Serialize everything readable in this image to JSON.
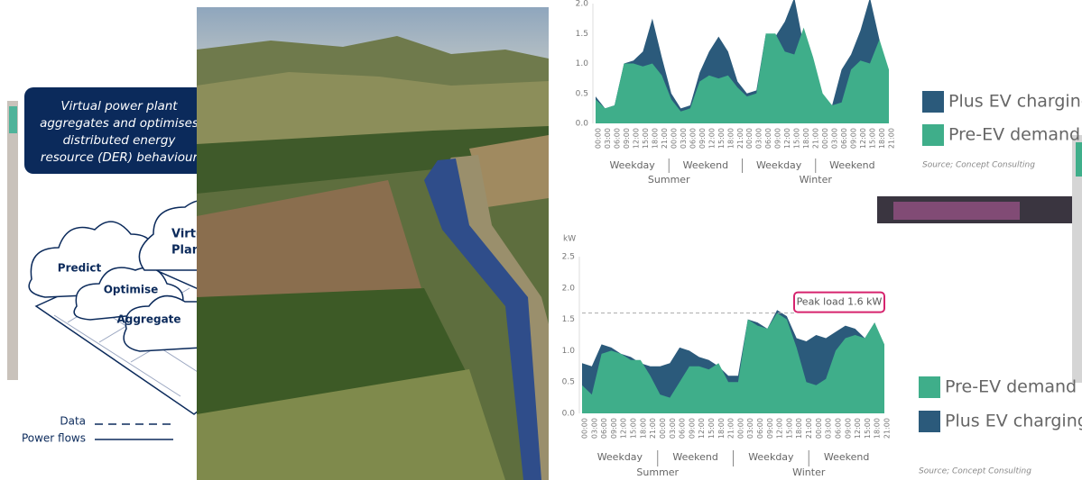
{
  "diagram": {
    "title_lines": [
      "Virtual power plant",
      "aggregates and optimises",
      "distributed energy",
      "resource (DER) behaviour"
    ],
    "hub_lines": [
      "Virtual",
      "Plant"
    ],
    "clouds": [
      "Predict",
      "Optimise",
      "Aggregate"
    ],
    "legend": [
      "Data",
      "Power flows"
    ]
  },
  "chart_data": [
    {
      "type": "area",
      "x": [
        "00:00",
        "03:00",
        "06:00",
        "09:00",
        "12:00",
        "15:00",
        "18:00",
        "21:00",
        "00:00",
        "03:00",
        "06:00",
        "09:00",
        "12:00",
        "15:00",
        "18:00",
        "21:00",
        "00:00",
        "03:00",
        "06:00",
        "09:00",
        "12:00",
        "15:00",
        "18:00",
        "21:00",
        "00:00",
        "03:00",
        "06:00",
        "09:00",
        "12:00",
        "15:00",
        "18:00",
        "21:00"
      ],
      "series": [
        {
          "name": "Plus EV charging",
          "color": "#2b5a7b",
          "values": [
            0.45,
            0.25,
            0.3,
            1.0,
            1.05,
            1.2,
            1.75,
            1.1,
            0.5,
            0.25,
            0.3,
            0.85,
            1.2,
            1.45,
            1.2,
            0.7,
            0.5,
            0.55,
            1.5,
            1.45,
            1.7,
            2.1,
            1.3,
            0.6,
            0.45,
            0.3,
            0.9,
            1.15,
            1.55,
            2.1,
            1.4,
            0.8
          ]
        },
        {
          "name": "Pre-EV demand",
          "color": "#3fae8a",
          "values": [
            0.4,
            0.25,
            0.3,
            1.0,
            1.0,
            0.95,
            1.0,
            0.8,
            0.4,
            0.2,
            0.25,
            0.7,
            0.8,
            0.75,
            0.8,
            0.6,
            0.45,
            0.5,
            1.5,
            1.5,
            1.2,
            1.15,
            1.6,
            1.1,
            0.5,
            0.3,
            0.35,
            0.9,
            1.05,
            1.0,
            1.4,
            0.9
          ]
        }
      ],
      "ylim": [
        0,
        2.0
      ],
      "yticks": [
        {
          "value": 0,
          "label": "0.0"
        },
        0.5,
        {
          "value": 1,
          "label": "1.0"
        },
        1.5,
        {
          "value": 2,
          "label": "2.0"
        }
      ],
      "days": [
        "Weekday",
        "Weekend",
        "Weekday",
        "Weekend"
      ],
      "seasons": [
        "Summer",
        "Winter"
      ],
      "source": "Source; Concept Consulting"
    },
    {
      "type": "area",
      "y_unit": "kW",
      "x": [
        "00:00",
        "03:00",
        "06:00",
        "09:00",
        "12:00",
        "15:00",
        "18:00",
        "21:00",
        "00:00",
        "03:00",
        "06:00",
        "09:00",
        "12:00",
        "15:00",
        "18:00",
        "21:00",
        "00:00",
        "03:00",
        "06:00",
        "09:00",
        "12:00",
        "15:00",
        "18:00",
        "21:00",
        "00:00",
        "03:00",
        "06:00",
        "09:00",
        "12:00",
        "15:00",
        "18:00",
        "21:00"
      ],
      "series": [
        {
          "name": "Plus EV charging",
          "color": "#2b5a7b",
          "values": [
            0.8,
            0.75,
            1.1,
            1.05,
            0.95,
            0.9,
            0.8,
            0.75,
            0.75,
            0.8,
            1.05,
            1.0,
            0.9,
            0.85,
            0.75,
            0.6,
            0.6,
            1.5,
            1.45,
            1.35,
            1.65,
            1.55,
            1.2,
            1.15,
            1.25,
            1.2,
            1.3,
            1.4,
            1.35,
            1.2,
            1.45,
            1.05
          ]
        },
        {
          "name": "Pre-EV demand",
          "color": "#3fae8a",
          "values": [
            0.45,
            0.3,
            0.95,
            1.0,
            0.95,
            0.85,
            0.85,
            0.6,
            0.3,
            0.25,
            0.5,
            0.75,
            0.75,
            0.7,
            0.8,
            0.5,
            0.5,
            1.5,
            1.4,
            1.35,
            1.6,
            1.5,
            1.05,
            0.5,
            0.45,
            0.55,
            1.0,
            1.2,
            1.25,
            1.2,
            1.45,
            1.1
          ]
        }
      ],
      "ylim": [
        0,
        2.5
      ],
      "yticks": [
        {
          "value": 0,
          "label": "0.0"
        },
        0.5,
        {
          "value": 1,
          "label": "1.0"
        },
        1.5,
        {
          "value": 2,
          "label": "2.0"
        },
        2.5
      ],
      "annotation": {
        "text": "Peak load 1.6 kW",
        "value": 1.6
      },
      "days": [
        "Weekday",
        "Weekend",
        "Weekday",
        "Weekend"
      ],
      "seasons": [
        "Summer",
        "Winter"
      ],
      "source": "Source; Concept Consulting"
    }
  ]
}
